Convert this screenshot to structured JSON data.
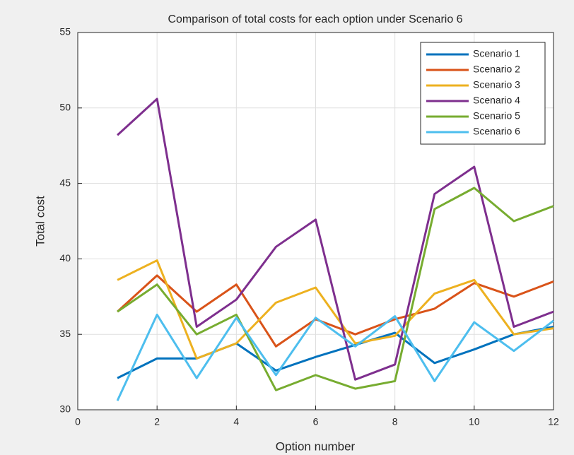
{
  "chart_data": {
    "type": "line",
    "title": "Comparison of total costs for each option under Scenario 6",
    "xlabel": "Option number",
    "ylabel": "Total cost",
    "x": [
      1,
      2,
      3,
      4,
      5,
      6,
      7,
      8,
      9,
      10,
      11,
      12
    ],
    "series": [
      {
        "name": "Scenario 1",
        "color": "#0072bd",
        "values": [
          32.1,
          33.4,
          33.4,
          34.4,
          32.6,
          33.5,
          34.3,
          35.1,
          33.1,
          34.0,
          35.0,
          35.5
        ]
      },
      {
        "name": "Scenario 2",
        "color": "#d95319",
        "values": [
          36.5,
          38.9,
          36.5,
          38.3,
          34.2,
          36.0,
          35.0,
          36.0,
          36.7,
          38.4,
          37.5,
          38.5
        ]
      },
      {
        "name": "Scenario 3",
        "color": "#edb120",
        "values": [
          38.6,
          39.9,
          33.4,
          34.4,
          37.1,
          38.1,
          34.4,
          34.9,
          37.7,
          38.6,
          35.0,
          35.4
        ]
      },
      {
        "name": "Scenario 4",
        "color": "#7e2f8e",
        "values": [
          48.2,
          50.6,
          35.5,
          37.3,
          40.8,
          42.6,
          32.0,
          33.0,
          44.3,
          46.1,
          35.5,
          36.5
        ]
      },
      {
        "name": "Scenario 5",
        "color": "#77ac30",
        "values": [
          36.5,
          38.3,
          35.0,
          36.3,
          31.3,
          32.3,
          31.4,
          31.9,
          43.3,
          44.7,
          42.5,
          43.5
        ]
      },
      {
        "name": "Scenario 6",
        "color": "#4dbeee",
        "values": [
          30.6,
          36.3,
          32.1,
          36.1,
          32.3,
          36.1,
          34.2,
          36.2,
          31.9,
          35.8,
          33.9,
          35.9
        ]
      }
    ],
    "xlim": [
      0,
      12
    ],
    "xticks": [
      0,
      2,
      4,
      6,
      8,
      10,
      12
    ],
    "ylim": [
      30,
      55
    ],
    "yticks": [
      30,
      35,
      40,
      45,
      50,
      55
    ],
    "grid": true,
    "legend": "northeast"
  }
}
